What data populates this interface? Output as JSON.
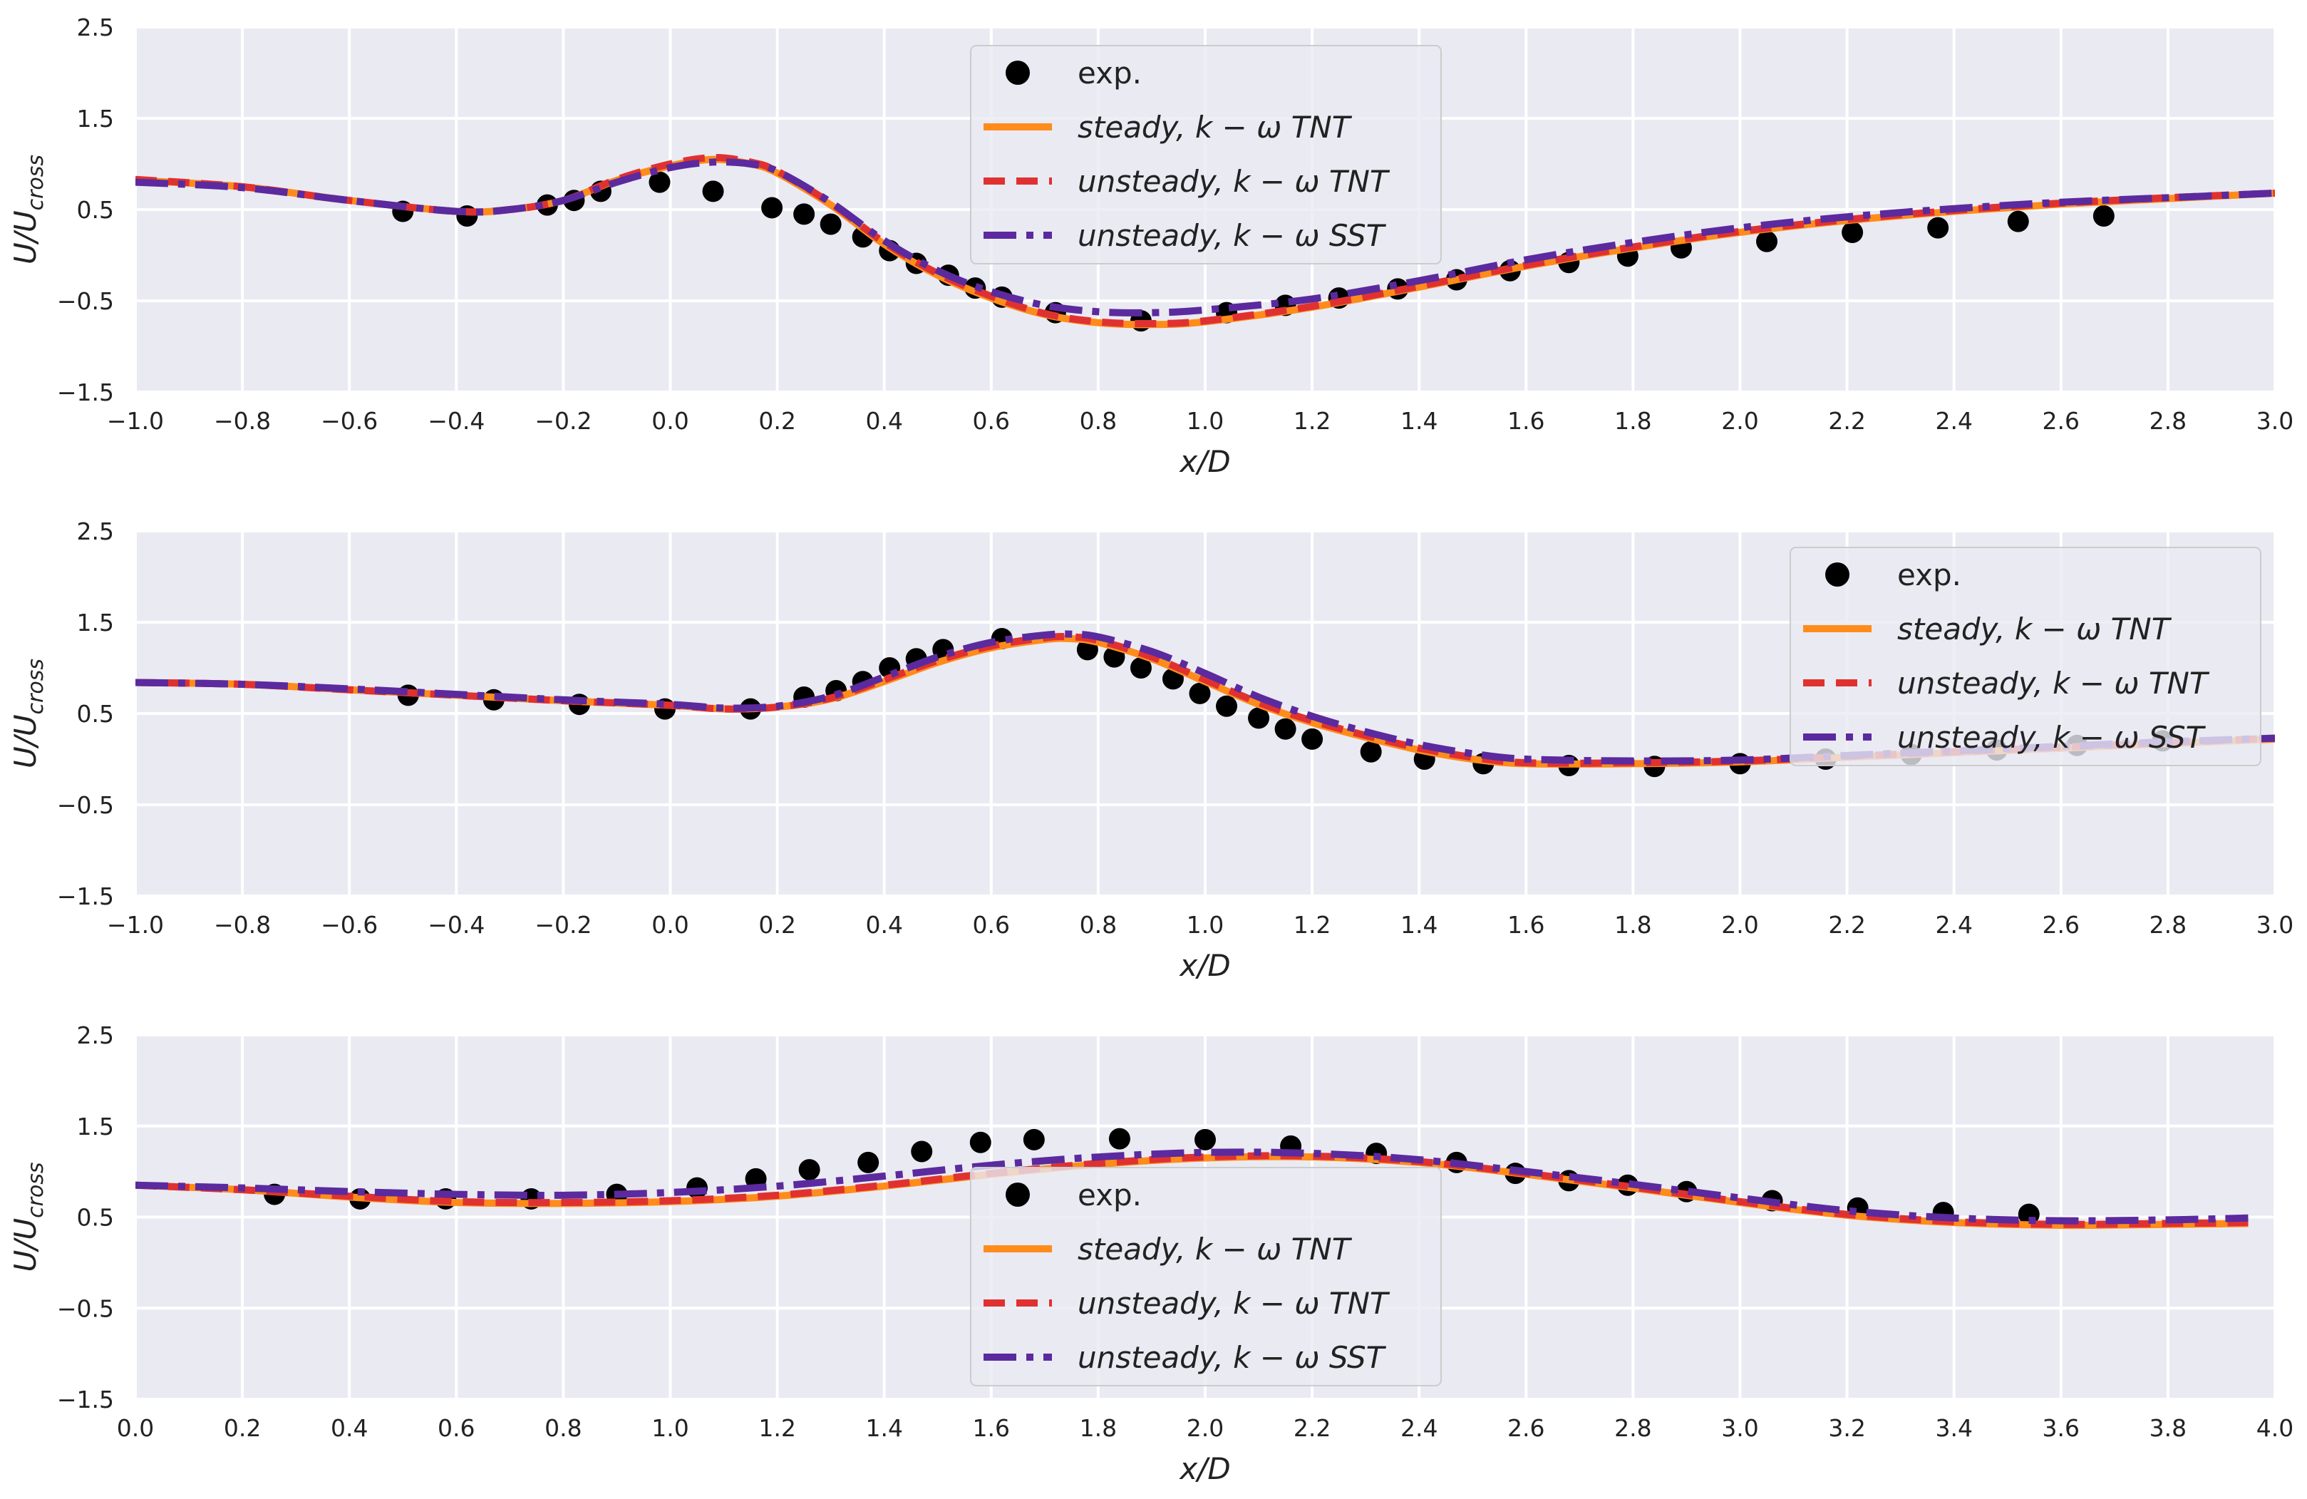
{
  "chart_data": [
    {
      "type": "line",
      "xlabel": "x/D",
      "ylabel": "U/U_cross",
      "ylabel_main": "U/U",
      "ylabel_sub": "cross",
      "xlim": [
        -1.0,
        3.0
      ],
      "ylim": [
        -1.5,
        2.5
      ],
      "xticks": [
        "−1.0",
        "−0.8",
        "−0.6",
        "−0.4",
        "−0.2",
        "0.0",
        "0.2",
        "0.4",
        "0.6",
        "0.8",
        "1.0",
        "1.2",
        "1.4",
        "1.6",
        "1.8",
        "2.0",
        "2.2",
        "2.4",
        "2.6",
        "2.8",
        "3.0"
      ],
      "yticks": [
        "2.5",
        "1.5",
        "0.5",
        "−0.5",
        "−1.5"
      ],
      "legend_position": "top-center",
      "legend": [
        "exp.",
        "steady,  k − ω TNT",
        "unsteady,  k − ω TNT",
        "unsteady,  k − ω SST"
      ],
      "exp": {
        "x": [
          -0.5,
          -0.38,
          -0.23,
          -0.18,
          -0.13,
          -0.02,
          0.08,
          0.19,
          0.25,
          0.3,
          0.36,
          0.41,
          0.46,
          0.52,
          0.57,
          0.62,
          0.72,
          0.88,
          1.04,
          1.15,
          1.25,
          1.36,
          1.47,
          1.57,
          1.68,
          1.79,
          1.89,
          2.05,
          2.21,
          2.37,
          2.52,
          2.68
        ],
        "y": [
          0.48,
          0.43,
          0.55,
          0.6,
          0.7,
          0.8,
          0.7,
          0.52,
          0.45,
          0.34,
          0.2,
          0.05,
          -0.09,
          -0.22,
          -0.36,
          -0.46,
          -0.63,
          -0.72,
          -0.63,
          -0.55,
          -0.47,
          -0.37,
          -0.27,
          -0.17,
          -0.08,
          -0.01,
          0.08,
          0.15,
          0.25,
          0.3,
          0.37,
          0.43
        ]
      },
      "series": [
        {
          "name": "steady,  k − ω TNT",
          "color": "#FF8C1A",
          "style": "solid",
          "x": [
            -1.0,
            -0.8,
            -0.6,
            -0.4,
            -0.3,
            -0.2,
            -0.1,
            0.0,
            0.08,
            0.15,
            0.2,
            0.3,
            0.4,
            0.5,
            0.6,
            0.7,
            0.8,
            0.9,
            1.0,
            1.2,
            1.4,
            1.6,
            1.8,
            2.0,
            2.2,
            2.4,
            2.6,
            2.8,
            3.0
          ],
          "y": [
            0.82,
            0.75,
            0.6,
            0.48,
            0.5,
            0.6,
            0.82,
            0.98,
            1.05,
            1.0,
            0.9,
            0.55,
            0.12,
            -0.22,
            -0.47,
            -0.65,
            -0.74,
            -0.76,
            -0.73,
            -0.57,
            -0.35,
            -0.12,
            0.08,
            0.25,
            0.38,
            0.48,
            0.56,
            0.62,
            0.68
          ]
        },
        {
          "name": "unsteady,  k − ω TNT",
          "color": "#E03131",
          "style": "dashed",
          "x": [
            -1.0,
            -0.8,
            -0.6,
            -0.4,
            -0.3,
            -0.2,
            -0.1,
            0.0,
            0.08,
            0.15,
            0.2,
            0.3,
            0.4,
            0.5,
            0.6,
            0.7,
            0.8,
            0.9,
            1.0,
            1.2,
            1.4,
            1.6,
            1.8,
            2.0,
            2.2,
            2.4,
            2.6,
            2.8,
            3.0
          ],
          "y": [
            0.83,
            0.75,
            0.6,
            0.48,
            0.5,
            0.6,
            0.83,
            1.0,
            1.07,
            1.02,
            0.92,
            0.57,
            0.14,
            -0.2,
            -0.45,
            -0.64,
            -0.73,
            -0.75,
            -0.72,
            -0.56,
            -0.34,
            -0.11,
            0.09,
            0.26,
            0.39,
            0.49,
            0.57,
            0.63,
            0.68
          ]
        },
        {
          "name": "unsteady,  k − ω SST",
          "color": "#5B2A9E",
          "style": "dashdot",
          "x": [
            -1.0,
            -0.8,
            -0.6,
            -0.4,
            -0.3,
            -0.2,
            -0.1,
            0.0,
            0.08,
            0.15,
            0.2,
            0.3,
            0.4,
            0.5,
            0.6,
            0.7,
            0.8,
            0.9,
            1.0,
            1.2,
            1.4,
            1.6,
            1.8,
            2.0,
            2.2,
            2.4,
            2.6,
            2.8,
            3.0
          ],
          "y": [
            0.8,
            0.74,
            0.6,
            0.48,
            0.5,
            0.6,
            0.8,
            0.96,
            1.02,
            1.0,
            0.92,
            0.58,
            0.16,
            -0.17,
            -0.4,
            -0.55,
            -0.62,
            -0.63,
            -0.6,
            -0.48,
            -0.28,
            -0.05,
            0.14,
            0.3,
            0.42,
            0.51,
            0.58,
            0.63,
            0.68
          ]
        }
      ]
    },
    {
      "type": "line",
      "xlabel": "x/D",
      "ylabel": "U/U_cross",
      "ylabel_main": "U/U",
      "ylabel_sub": "cross",
      "xlim": [
        -1.0,
        3.0
      ],
      "ylim": [
        -1.5,
        2.5
      ],
      "xticks": [
        "−1.0",
        "−0.8",
        "−0.6",
        "−0.4",
        "−0.2",
        "0.0",
        "0.2",
        "0.4",
        "0.6",
        "0.8",
        "1.0",
        "1.2",
        "1.4",
        "1.6",
        "1.8",
        "2.0",
        "2.2",
        "2.4",
        "2.6",
        "2.8",
        "3.0"
      ],
      "yticks": [
        "2.5",
        "1.5",
        "0.5",
        "−0.5",
        "−1.5"
      ],
      "legend_position": "top-right",
      "legend": [
        "exp.",
        "steady,  k − ω TNT",
        "unsteady,  k − ω TNT",
        "unsteady,  k − ω SST"
      ],
      "exp": {
        "x": [
          -0.49,
          -0.33,
          -0.17,
          -0.01,
          0.15,
          0.25,
          0.31,
          0.36,
          0.41,
          0.46,
          0.51,
          0.62,
          0.78,
          0.83,
          0.88,
          0.94,
          0.99,
          1.04,
          1.1,
          1.15,
          1.2,
          1.31,
          1.41,
          1.52,
          1.68,
          1.84,
          2.0,
          2.16,
          2.32,
          2.48,
          2.63,
          2.79
        ],
        "y": [
          0.7,
          0.65,
          0.6,
          0.55,
          0.55,
          0.68,
          0.75,
          0.85,
          1.0,
          1.1,
          1.2,
          1.32,
          1.2,
          1.12,
          1.0,
          0.88,
          0.72,
          0.58,
          0.45,
          0.33,
          0.22,
          0.08,
          0.0,
          -0.05,
          -0.07,
          -0.08,
          -0.05,
          0.0,
          0.05,
          0.1,
          0.15,
          0.2
        ]
      },
      "series": [
        {
          "name": "steady,  k − ω TNT",
          "color": "#FF8C1A",
          "style": "solid",
          "x": [
            -1.0,
            -0.8,
            -0.6,
            -0.4,
            -0.2,
            0.0,
            0.1,
            0.2,
            0.3,
            0.4,
            0.5,
            0.6,
            0.7,
            0.75,
            0.8,
            0.9,
            1.0,
            1.1,
            1.2,
            1.3,
            1.4,
            1.5,
            1.6,
            1.8,
            2.0,
            2.2,
            2.4,
            2.6,
            2.8,
            3.0
          ],
          "y": [
            0.84,
            0.82,
            0.76,
            0.7,
            0.64,
            0.59,
            0.55,
            0.57,
            0.66,
            0.85,
            1.06,
            1.22,
            1.31,
            1.32,
            1.28,
            1.1,
            0.85,
            0.6,
            0.4,
            0.24,
            0.1,
            0.0,
            -0.05,
            -0.05,
            -0.03,
            0.02,
            0.07,
            0.12,
            0.17,
            0.22
          ]
        },
        {
          "name": "unsteady,  k − ω TNT",
          "color": "#E03131",
          "style": "dashed",
          "x": [
            -1.0,
            -0.8,
            -0.6,
            -0.4,
            -0.2,
            0.0,
            0.1,
            0.2,
            0.3,
            0.4,
            0.5,
            0.6,
            0.7,
            0.75,
            0.8,
            0.9,
            1.0,
            1.1,
            1.2,
            1.3,
            1.4,
            1.5,
            1.6,
            1.8,
            2.0,
            2.2,
            2.4,
            2.6,
            2.8,
            3.0
          ],
          "y": [
            0.84,
            0.82,
            0.76,
            0.7,
            0.64,
            0.59,
            0.55,
            0.57,
            0.67,
            0.87,
            1.08,
            1.24,
            1.33,
            1.34,
            1.3,
            1.12,
            0.87,
            0.62,
            0.42,
            0.26,
            0.12,
            0.02,
            -0.04,
            -0.04,
            -0.02,
            0.03,
            0.08,
            0.13,
            0.18,
            0.23
          ]
        },
        {
          "name": "unsteady,  k − ω SST",
          "color": "#5B2A9E",
          "style": "dashdot",
          "x": [
            -1.0,
            -0.8,
            -0.6,
            -0.4,
            -0.2,
            0.0,
            0.1,
            0.2,
            0.3,
            0.4,
            0.5,
            0.6,
            0.7,
            0.75,
            0.8,
            0.9,
            1.0,
            1.1,
            1.2,
            1.3,
            1.4,
            1.5,
            1.6,
            1.8,
            2.0,
            2.2,
            2.4,
            2.6,
            2.8,
            3.0
          ],
          "y": [
            0.84,
            0.82,
            0.77,
            0.71,
            0.65,
            0.6,
            0.56,
            0.58,
            0.69,
            0.9,
            1.12,
            1.28,
            1.36,
            1.37,
            1.34,
            1.18,
            0.94,
            0.68,
            0.47,
            0.3,
            0.16,
            0.06,
            0.0,
            -0.02,
            -0.01,
            0.04,
            0.09,
            0.14,
            0.19,
            0.23
          ]
        }
      ]
    },
    {
      "type": "line",
      "xlabel": "x/D",
      "ylabel": "U/U_cross",
      "ylabel_main": "U/U",
      "ylabel_sub": "cross",
      "xlim": [
        0.0,
        4.0
      ],
      "ylim": [
        -1.5,
        2.5
      ],
      "xticks": [
        "0.0",
        "0.2",
        "0.4",
        "0.6",
        "0.8",
        "1.0",
        "1.2",
        "1.4",
        "1.6",
        "1.8",
        "2.0",
        "2.2",
        "2.4",
        "2.6",
        "2.8",
        "3.0",
        "3.2",
        "3.4",
        "3.6",
        "3.8",
        "4.0"
      ],
      "yticks": [
        "2.5",
        "1.5",
        "0.5",
        "−0.5",
        "−1.5"
      ],
      "legend_position": "bottom-center",
      "legend": [
        "exp.",
        "steady,  k − ω TNT",
        "unsteady,  k − ω TNT",
        "unsteady,  k − ω SST"
      ],
      "exp": {
        "x": [
          0.26,
          0.42,
          0.58,
          0.74,
          0.9,
          1.05,
          1.16,
          1.26,
          1.37,
          1.47,
          1.58,
          1.68,
          1.84,
          2.0,
          2.16,
          2.32,
          2.47,
          2.58,
          2.68,
          2.79,
          2.9,
          3.06,
          3.22,
          3.38,
          3.54
        ],
        "y": [
          0.75,
          0.7,
          0.7,
          0.7,
          0.75,
          0.82,
          0.92,
          1.02,
          1.1,
          1.22,
          1.32,
          1.35,
          1.36,
          1.35,
          1.28,
          1.2,
          1.1,
          0.98,
          0.9,
          0.85,
          0.78,
          0.68,
          0.6,
          0.55,
          0.53
        ]
      },
      "series": [
        {
          "name": "steady,  k − ω TNT",
          "color": "#FF8C1A",
          "style": "solid",
          "x": [
            0.0,
            0.2,
            0.4,
            0.6,
            0.8,
            1.0,
            1.2,
            1.4,
            1.6,
            1.8,
            2.0,
            2.2,
            2.4,
            2.6,
            2.8,
            3.0,
            3.2,
            3.4,
            3.6,
            3.8,
            3.95
          ],
          "y": [
            0.85,
            0.8,
            0.72,
            0.66,
            0.65,
            0.67,
            0.73,
            0.84,
            0.97,
            1.08,
            1.15,
            1.16,
            1.1,
            0.97,
            0.82,
            0.66,
            0.52,
            0.44,
            0.41,
            0.42,
            0.43
          ]
        },
        {
          "name": "unsteady,  k − ω TNT",
          "color": "#E03131",
          "style": "dashed",
          "x": [
            0.0,
            0.2,
            0.4,
            0.6,
            0.8,
            1.0,
            1.2,
            1.4,
            1.6,
            1.8,
            2.0,
            2.2,
            2.4,
            2.6,
            2.8,
            3.0,
            3.2,
            3.4,
            3.6,
            3.8,
            3.95
          ],
          "y": [
            0.85,
            0.8,
            0.73,
            0.67,
            0.66,
            0.68,
            0.74,
            0.85,
            0.98,
            1.09,
            1.16,
            1.17,
            1.11,
            0.98,
            0.83,
            0.67,
            0.53,
            0.45,
            0.42,
            0.43,
            0.44
          ]
        },
        {
          "name": "unsteady,  k − ω SST",
          "color": "#5B2A9E",
          "style": "dashdot",
          "x": [
            0.0,
            0.2,
            0.4,
            0.6,
            0.8,
            1.0,
            1.2,
            1.4,
            1.6,
            1.8,
            2.0,
            2.2,
            2.4,
            2.6,
            2.8,
            3.0,
            3.2,
            3.4,
            3.6,
            3.8,
            3.95
          ],
          "y": [
            0.85,
            0.82,
            0.78,
            0.75,
            0.74,
            0.77,
            0.84,
            0.95,
            1.07,
            1.16,
            1.21,
            1.2,
            1.13,
            1.0,
            0.86,
            0.71,
            0.57,
            0.49,
            0.46,
            0.47,
            0.49
          ]
        }
      ]
    }
  ]
}
